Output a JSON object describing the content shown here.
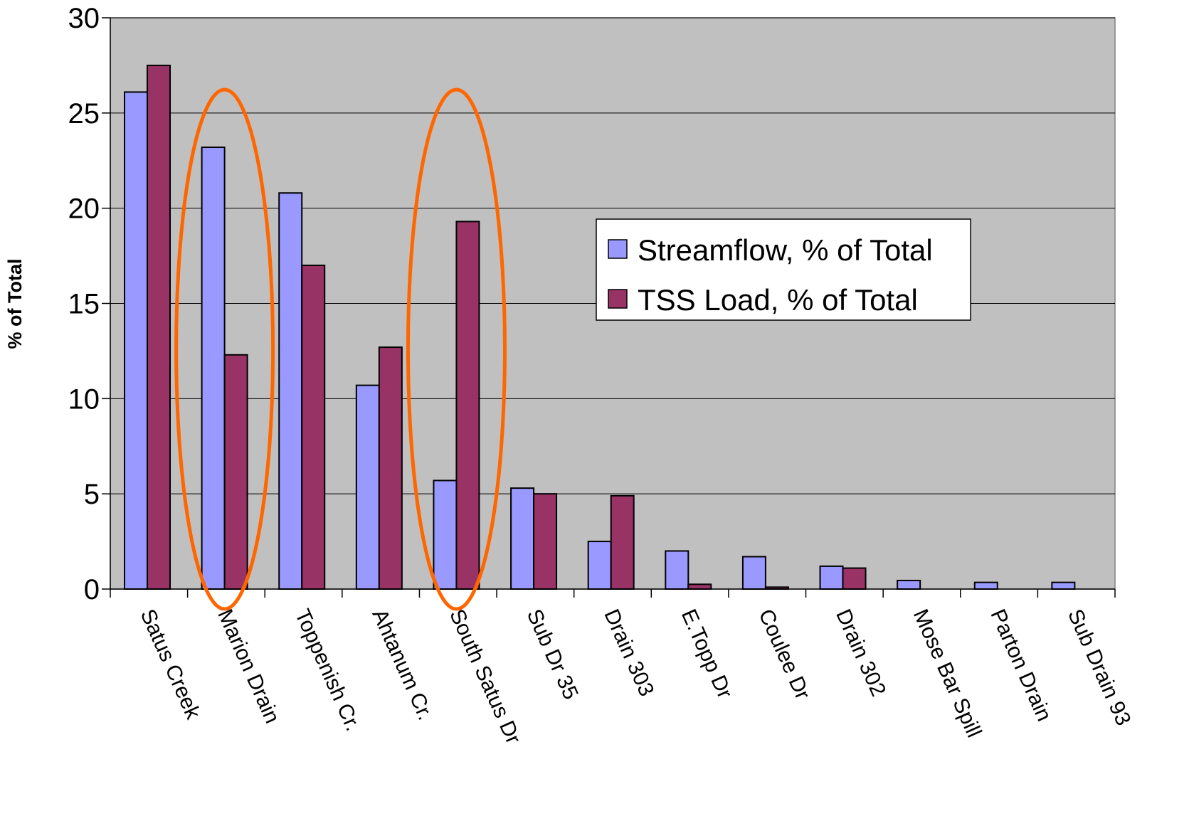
{
  "chart_data": {
    "type": "bar",
    "title": "",
    "xlabel": "",
    "ylabel": "% of Total",
    "ylim": [
      0,
      30
    ],
    "yticks": [
      0,
      5,
      10,
      15,
      20,
      25,
      30
    ],
    "grid": true,
    "legend_position": "center-right",
    "categories": [
      "Satus Creek",
      "Marion Drain",
      "Toppenish Cr.",
      "Ahtanum Cr.",
      "South Satus Dr",
      "Sub Dr 35",
      "Drain 303",
      "E.Topp Dr",
      "Coulee Dr",
      "Drain 302",
      "Mose Bar Spill",
      "Parton Drain",
      "Sub Drain 93"
    ],
    "series": [
      {
        "name": "Streamflow, % of Total",
        "color": "#9999ff",
        "values": [
          26.1,
          23.2,
          20.8,
          10.7,
          5.7,
          5.3,
          2.5,
          2.0,
          1.7,
          1.2,
          0.45,
          0.35,
          0.35
        ]
      },
      {
        "name": "TSS Load, % of Total",
        "color": "#993366",
        "values": [
          27.5,
          12.3,
          17.0,
          12.7,
          19.3,
          5.0,
          4.9,
          0.25,
          0.1,
          1.1,
          0,
          0,
          0
        ]
      }
    ],
    "highlight_ellipses": [
      {
        "category": "Marion Drain",
        "color": "#ff6600"
      },
      {
        "category": "South Satus Dr",
        "color": "#ff6600"
      }
    ],
    "plot_background": "#c0c0c0"
  }
}
